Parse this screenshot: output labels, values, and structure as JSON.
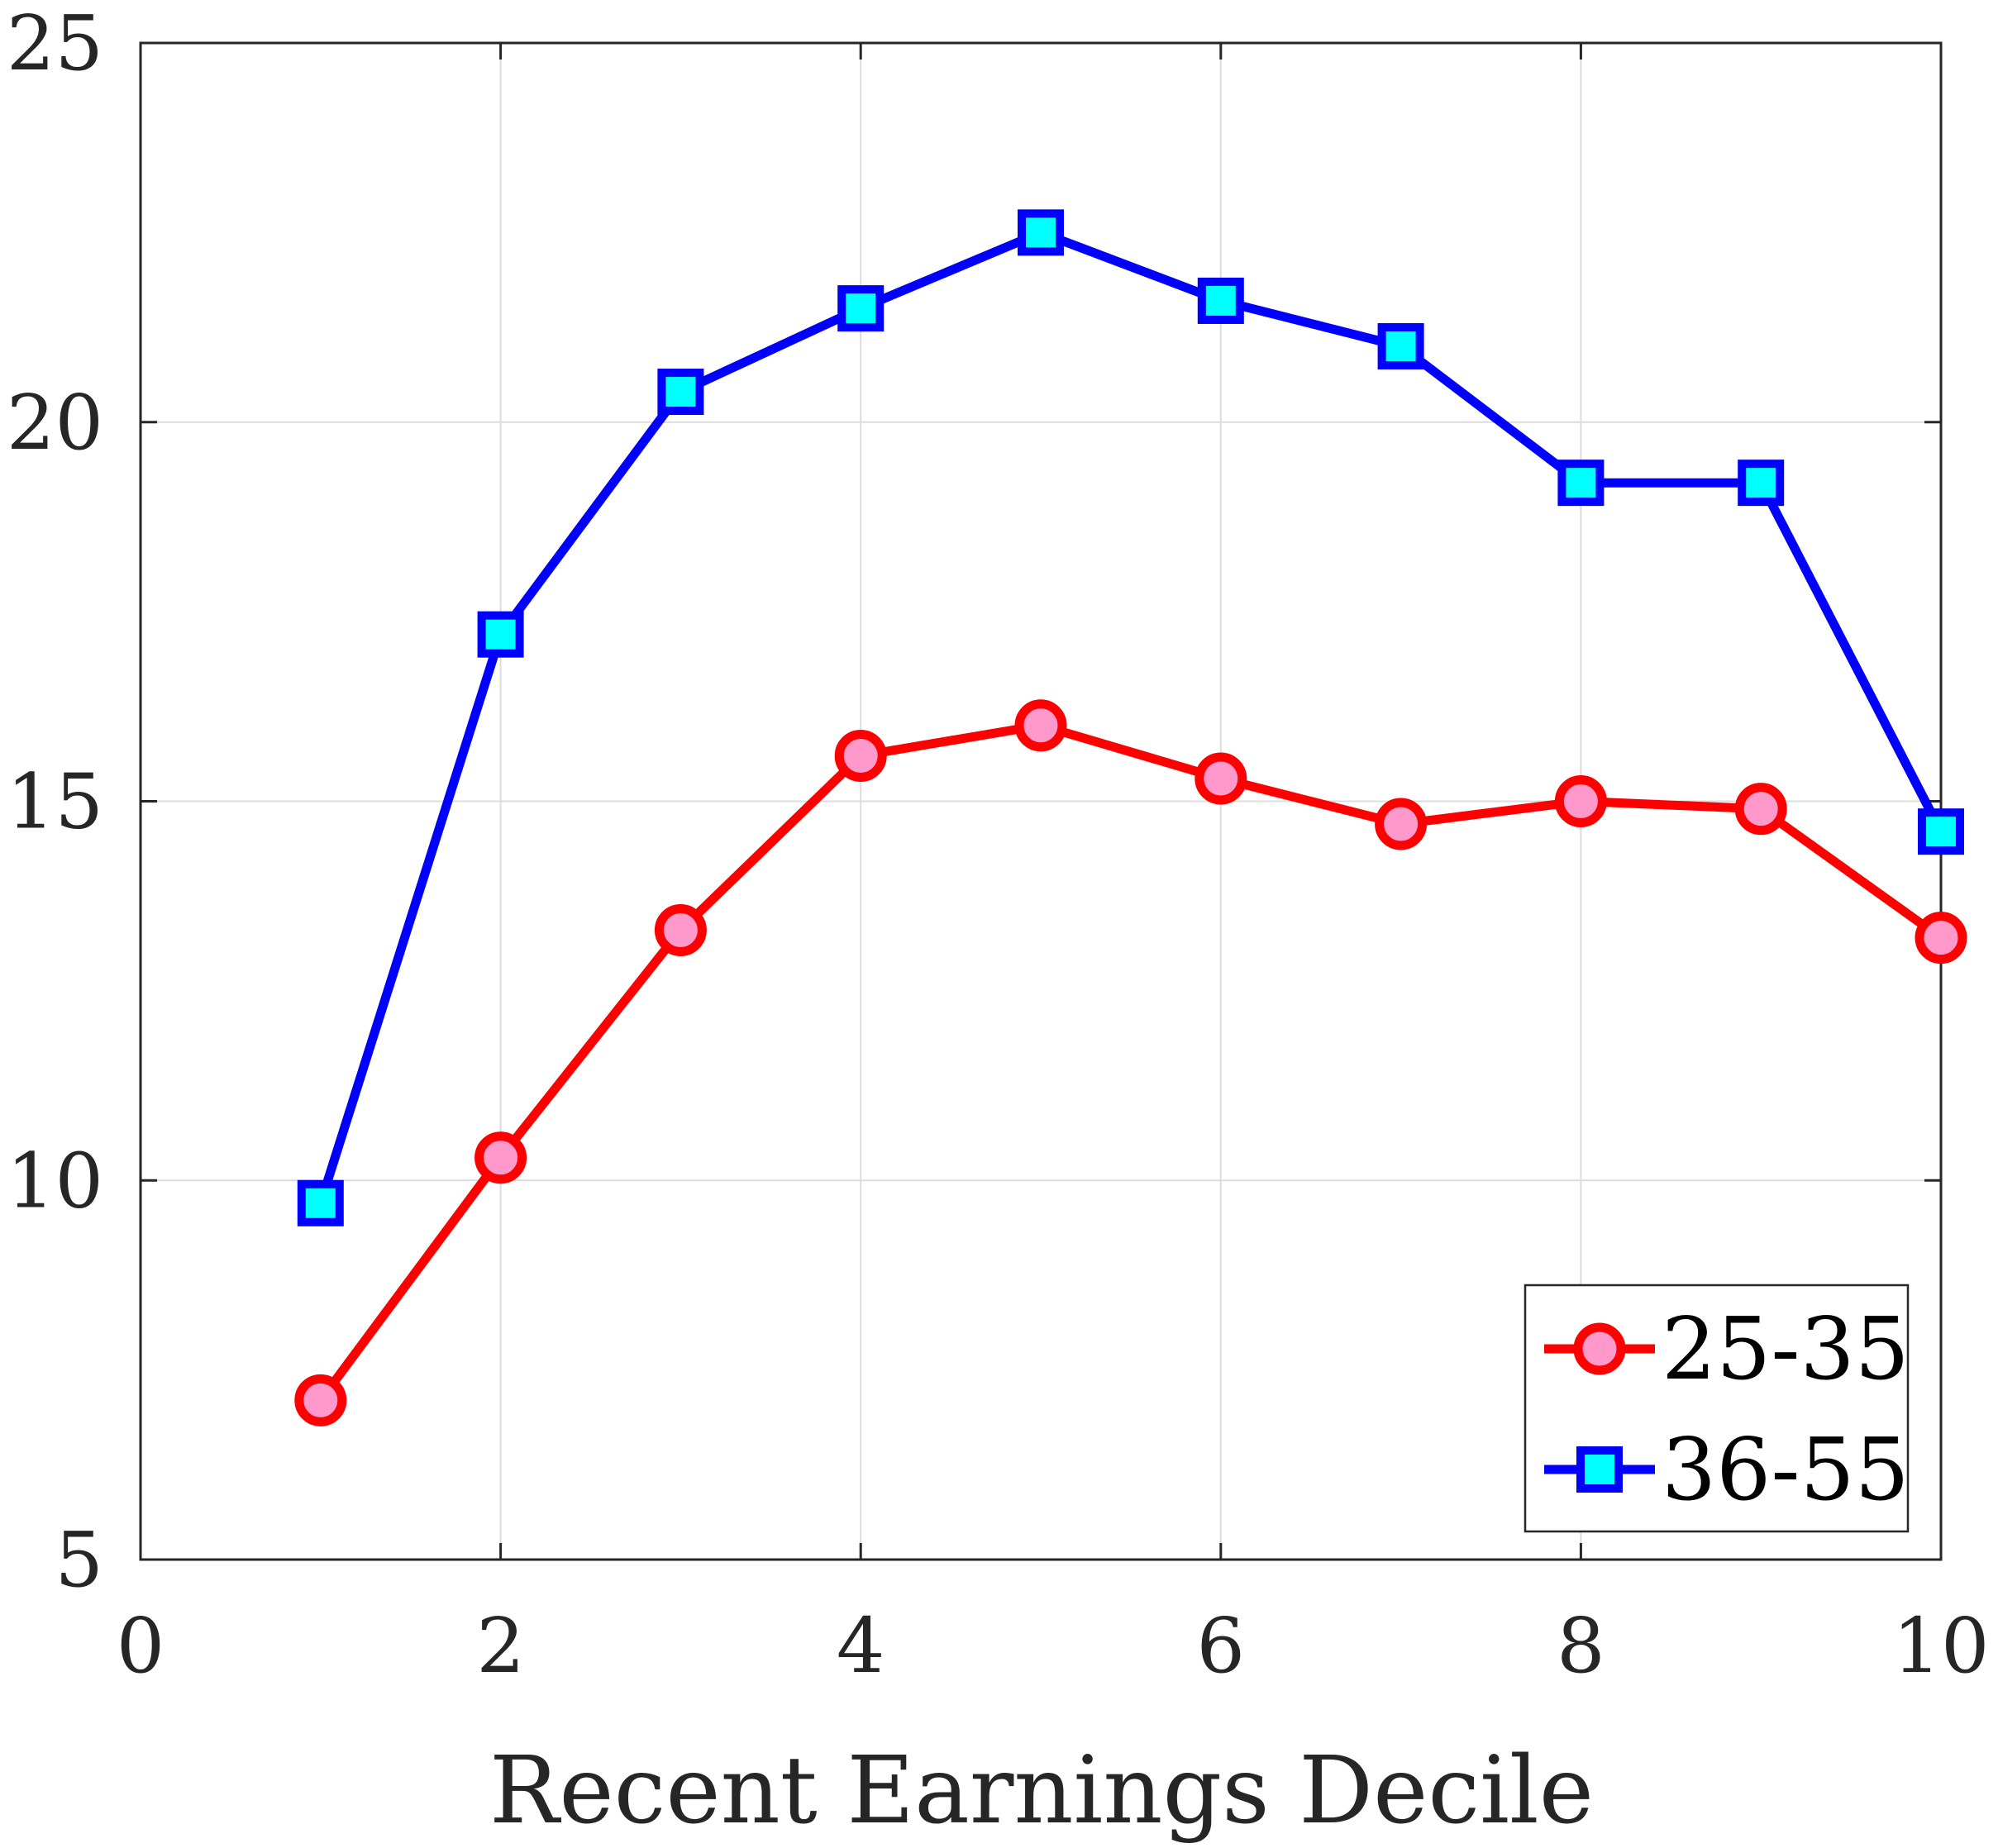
{
  "chart_data": {
    "type": "line",
    "title": "",
    "xlabel": "Recent Earnings Decile",
    "ylabel": "",
    "xlim": [
      0,
      10
    ],
    "ylim": [
      5,
      25
    ],
    "xticks": [
      0,
      2,
      4,
      6,
      8,
      10
    ],
    "yticks": [
      5,
      10,
      15,
      20,
      25
    ],
    "grid": true,
    "legend_position": "bottom-right",
    "series": [
      {
        "name": "25-35",
        "marker": "circle",
        "line_color": "#ff0000",
        "marker_fill": "#ff99cc",
        "x": [
          1,
          2,
          3,
          4,
          5,
          6,
          7,
          8,
          9,
          10
        ],
        "values": [
          7.1,
          10.3,
          13.3,
          15.6,
          16.0,
          15.3,
          14.7,
          15.0,
          14.9,
          13.2
        ]
      },
      {
        "name": "36-55",
        "marker": "square",
        "line_color": "#0000ff",
        "marker_fill": "#00ffff",
        "x": [
          1,
          2,
          3,
          4,
          5,
          6,
          7,
          8,
          9,
          10
        ],
        "values": [
          9.7,
          17.2,
          20.4,
          21.5,
          22.5,
          21.6,
          21.0,
          19.2,
          19.2,
          14.6
        ]
      }
    ]
  }
}
